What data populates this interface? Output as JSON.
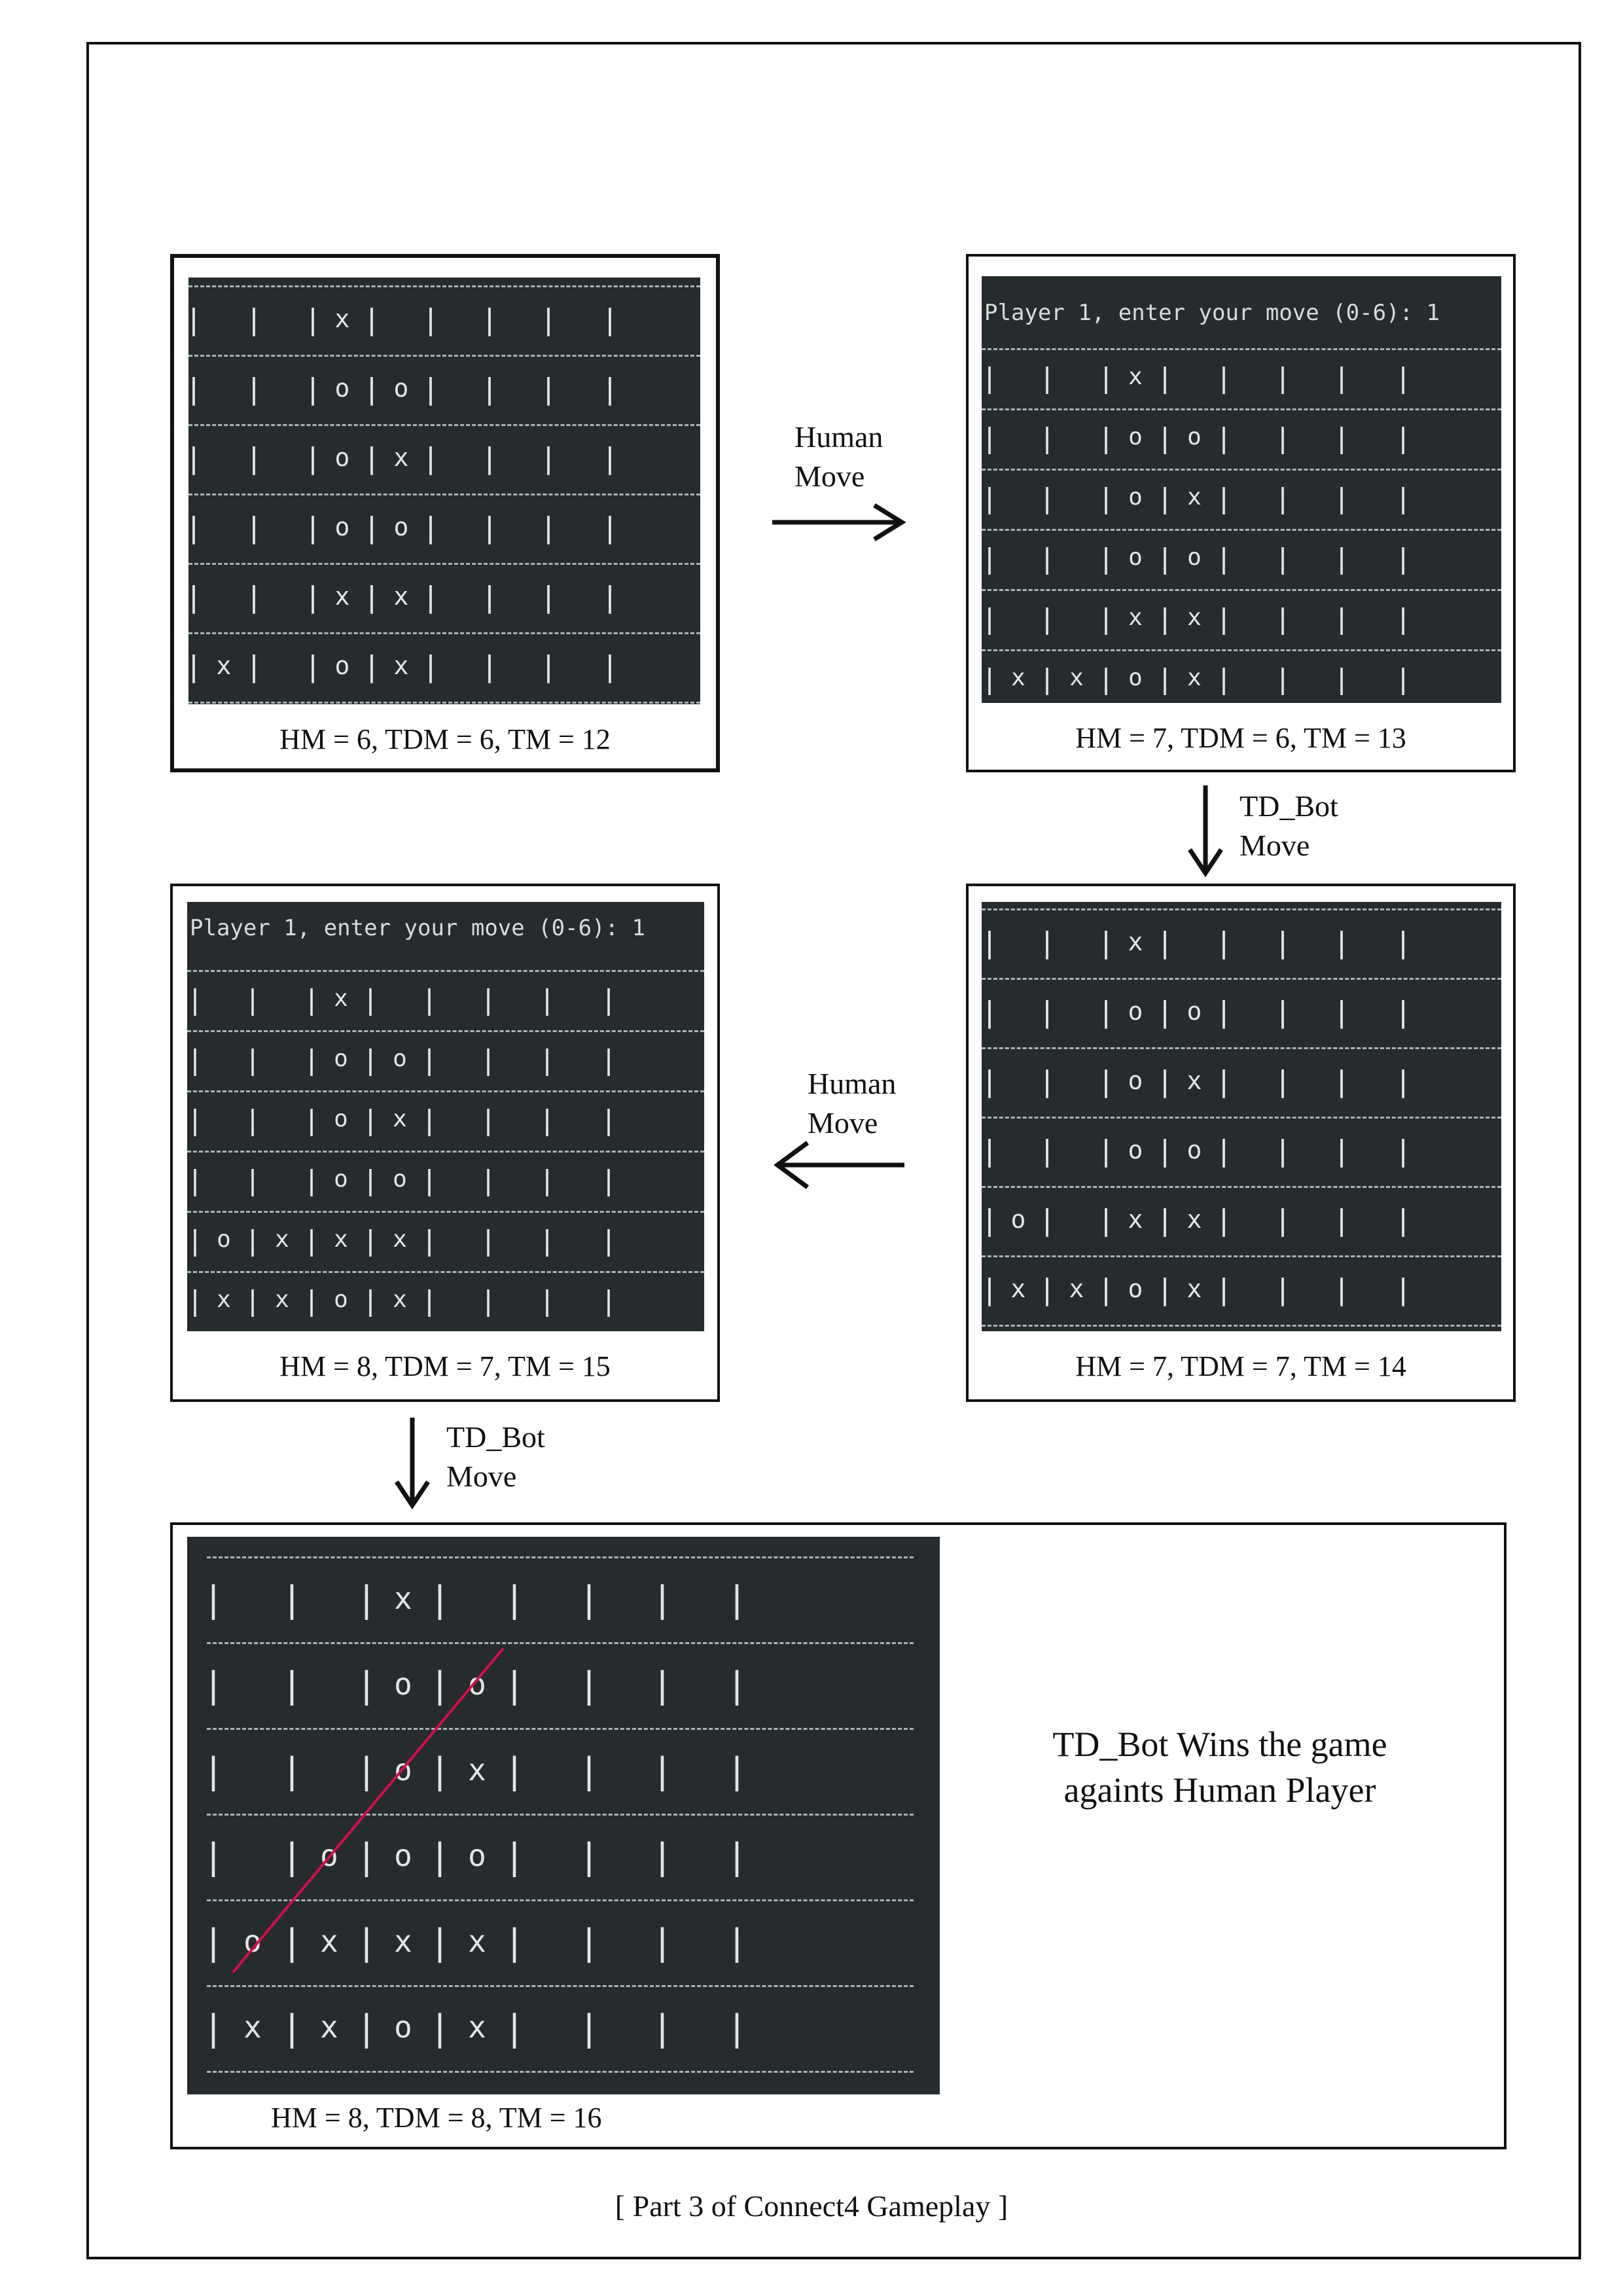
{
  "prompt_text": "Player 1, enter your move (0-6): 1",
  "boards": [
    {
      "id": "board-1",
      "show_prompt": false,
      "caption": "HM = 6, TDM = 6, TM = 12",
      "rows": [
        [
          " ",
          " ",
          "x",
          " ",
          " ",
          " ",
          " "
        ],
        [
          " ",
          " ",
          "o",
          "o",
          " ",
          " ",
          " "
        ],
        [
          " ",
          " ",
          "o",
          "x",
          " ",
          " ",
          " "
        ],
        [
          " ",
          " ",
          "o",
          "o",
          " ",
          " ",
          " "
        ],
        [
          " ",
          " ",
          "x",
          "x",
          " ",
          " ",
          " "
        ],
        [
          "x",
          " ",
          "o",
          "x",
          " ",
          " ",
          " "
        ]
      ]
    },
    {
      "id": "board-2",
      "show_prompt": true,
      "caption": "HM = 7, TDM = 6, TM = 13",
      "rows": [
        [
          " ",
          " ",
          "x",
          " ",
          " ",
          " ",
          " "
        ],
        [
          " ",
          " ",
          "o",
          "o",
          " ",
          " ",
          " "
        ],
        [
          " ",
          " ",
          "o",
          "x",
          " ",
          " ",
          " "
        ],
        [
          " ",
          " ",
          "o",
          "o",
          " ",
          " ",
          " "
        ],
        [
          " ",
          " ",
          "x",
          "x",
          " ",
          " ",
          " "
        ],
        [
          "x",
          "x",
          "o",
          "x",
          " ",
          " ",
          " "
        ]
      ]
    },
    {
      "id": "board-3",
      "show_prompt": false,
      "caption": "HM = 7, TDM = 7, TM = 14",
      "rows": [
        [
          " ",
          " ",
          "x",
          " ",
          " ",
          " ",
          " "
        ],
        [
          " ",
          " ",
          "o",
          "o",
          " ",
          " ",
          " "
        ],
        [
          " ",
          " ",
          "o",
          "x",
          " ",
          " ",
          " "
        ],
        [
          " ",
          " ",
          "o",
          "o",
          " ",
          " ",
          " "
        ],
        [
          "o",
          " ",
          "x",
          "x",
          " ",
          " ",
          " "
        ],
        [
          "x",
          "x",
          "o",
          "x",
          " ",
          " ",
          " "
        ]
      ]
    },
    {
      "id": "board-4",
      "show_prompt": true,
      "caption": "HM = 8, TDM = 7, TM = 15",
      "rows": [
        [
          " ",
          " ",
          "x",
          " ",
          " ",
          " ",
          " "
        ],
        [
          " ",
          " ",
          "o",
          "o",
          " ",
          " ",
          " "
        ],
        [
          " ",
          " ",
          "o",
          "x",
          " ",
          " ",
          " "
        ],
        [
          " ",
          " ",
          "o",
          "o",
          " ",
          " ",
          " "
        ],
        [
          "o",
          "x",
          "x",
          "x",
          " ",
          " ",
          " "
        ],
        [
          "x",
          "x",
          "o",
          "x",
          " ",
          " ",
          " "
        ]
      ]
    },
    {
      "id": "board-5",
      "show_prompt": false,
      "caption": "HM = 8, TDM = 8, TM = 16",
      "rows": [
        [
          " ",
          " ",
          "x",
          " ",
          " ",
          " ",
          " "
        ],
        [
          " ",
          " ",
          "o",
          "o",
          " ",
          " ",
          " "
        ],
        [
          " ",
          " ",
          "o",
          "x",
          " ",
          " ",
          " "
        ],
        [
          " ",
          "o",
          "o",
          "o",
          " ",
          " ",
          " "
        ],
        [
          "o",
          "x",
          "x",
          "x",
          " ",
          " ",
          " "
        ],
        [
          "x",
          "x",
          "o",
          "x",
          " ",
          " ",
          " "
        ]
      ]
    }
  ],
  "transitions": {
    "human_move_1": "Human\nMove",
    "td_bot_move_1": "TD_Bot\nMove",
    "human_move_2": "Human\nMove",
    "td_bot_move_2": "TD_Bot\nMove"
  },
  "result_text": "TD_Bot Wins the game\nagaints Human Player",
  "win_line_color": "#d0104c",
  "footer": "[ Part 3 of Connect4 Gameplay ]"
}
